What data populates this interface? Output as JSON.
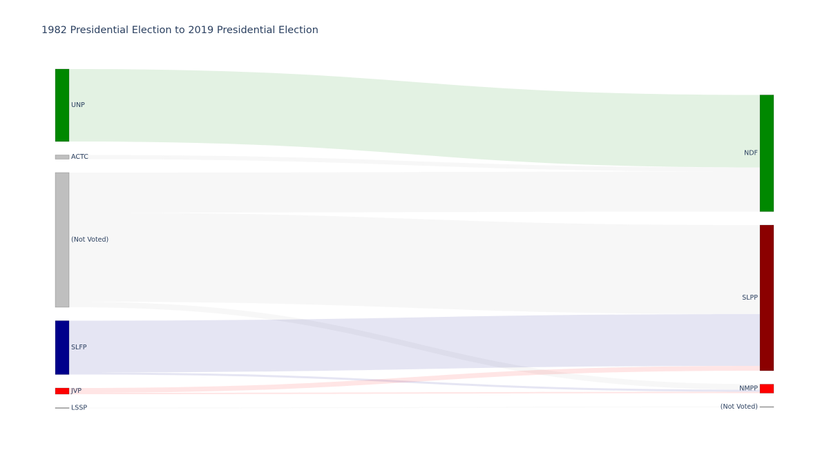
{
  "chart_data": {
    "type": "sankey",
    "title": "1982 Presidential Election to 2019 Presidential Election",
    "nodes": {
      "source": [
        {
          "label": "UNP",
          "value": 105,
          "color": "#008800"
        },
        {
          "label": "ACTC",
          "value": 6,
          "color": "#bfbfbf"
        },
        {
          "label": "(Not Voted)",
          "value": 195,
          "color": "#bfbfbf"
        },
        {
          "label": "SLFP",
          "value": 78,
          "color": "#00008b"
        },
        {
          "label": "JVP",
          "value": 9,
          "color": "#ff0000"
        },
        {
          "label": "LSSP",
          "value": 1,
          "color": "#a6a6a6"
        }
      ],
      "target": [
        {
          "label": "NDF",
          "value": 169,
          "color": "#008800"
        },
        {
          "label": "SLPP",
          "value": 211,
          "color": "#8b0000"
        },
        {
          "label": "NMPP",
          "value": 13,
          "color": "#ff0000"
        },
        {
          "label": "(Not Voted)",
          "value": 1,
          "color": "#a6a6a6"
        }
      ]
    },
    "links": [
      {
        "source": "UNP",
        "target": "NDF",
        "value": 105,
        "color": "rgba(0,136,0,0.11)"
      },
      {
        "source": "ACTC",
        "target": "NDF",
        "value": 6,
        "color": "rgba(191,191,191,0.12)"
      },
      {
        "source": "(Not Voted)",
        "target": "NDF",
        "value": 58,
        "color": "rgba(191,191,191,0.12)"
      },
      {
        "source": "(Not Voted)",
        "target": "SLPP",
        "value": 129,
        "color": "rgba(191,191,191,0.12)"
      },
      {
        "source": "(Not Voted)",
        "target": "NMPP",
        "value": 8,
        "color": "rgba(191,191,191,0.12)"
      },
      {
        "source": "SLFP",
        "target": "SLPP",
        "value": 75,
        "color": "rgba(0,0,139,0.10)"
      },
      {
        "source": "SLFP",
        "target": "NMPP",
        "value": 3,
        "color": "rgba(0,0,139,0.10)"
      },
      {
        "source": "JVP",
        "target": "SLPP",
        "value": 7,
        "color": "rgba(255,0,0,0.10)"
      },
      {
        "source": "JVP",
        "target": "NMPP",
        "value": 2,
        "color": "rgba(255,0,0,0.10)"
      },
      {
        "source": "LSSP",
        "target": "(Not Voted)",
        "value": 1,
        "color": "rgba(191,191,191,0.12)"
      }
    ]
  }
}
